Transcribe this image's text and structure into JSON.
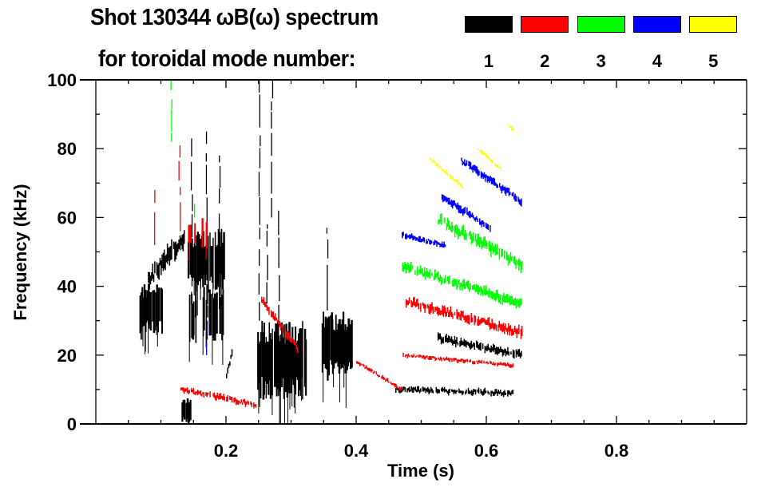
{
  "chart_data": {
    "type": "heatmap",
    "title": "Shot 130344 ωB(ω) spectrum",
    "subtitle": "for toroidal mode number:",
    "xlabel": "Time (s)",
    "ylabel": "Frequency (kHz)",
    "xlim": [
      0,
      1.0
    ],
    "ylim": [
      0,
      100
    ],
    "xticks": [
      0.2,
      0.4,
      0.6,
      0.8
    ],
    "xtick_labels": [
      "0.2",
      "0.4",
      "0.6",
      "0.8"
    ],
    "yticks": [
      0,
      20,
      40,
      60,
      80,
      100
    ],
    "ytick_labels": [
      "0",
      "20",
      "40",
      "60",
      "80",
      "100"
    ],
    "legend": [
      {
        "label": "1",
        "color": "#000000"
      },
      {
        "label": "2",
        "color": "#ff0000"
      },
      {
        "label": "3",
        "color": "#00ff00"
      },
      {
        "label": "4",
        "color": "#0000ff"
      },
      {
        "label": "5",
        "color": "#ffff00"
      }
    ],
    "legend_position": "top-right",
    "features": [
      {
        "mode": 1,
        "kind": "blob",
        "t": [
          0.067,
          0.102
        ],
        "f": [
          26,
          41
        ],
        "density": 0.9
      },
      {
        "mode": 1,
        "kind": "band",
        "t": [
          0.08,
          0.135
        ],
        "f": [
          42,
          54
        ],
        "thick": 5
      },
      {
        "mode": 1,
        "kind": "blob",
        "t": [
          0.141,
          0.196
        ],
        "f": [
          38,
          57
        ],
        "density": 0.95
      },
      {
        "mode": 1,
        "kind": "blob",
        "t": [
          0.14,
          0.2
        ],
        "f": [
          22,
          40
        ],
        "density": 0.4
      },
      {
        "mode": 1,
        "kind": "streak",
        "t": 0.147,
        "f": [
          26,
          83
        ]
      },
      {
        "mode": 1,
        "kind": "streak",
        "t": 0.17,
        "f": [
          24,
          85
        ]
      },
      {
        "mode": 1,
        "kind": "streak",
        "t": 0.19,
        "f": [
          40,
          78
        ]
      },
      {
        "mode": 1,
        "kind": "streak",
        "t": 0.075,
        "f": [
          21,
          30
        ]
      },
      {
        "mode": 1,
        "kind": "band",
        "t": [
          0.2,
          0.21
        ],
        "f": [
          14,
          22
        ],
        "thick": 2
      },
      {
        "mode": 1,
        "kind": "blob",
        "t": [
          0.248,
          0.322
        ],
        "f": [
          7,
          30
        ],
        "density": 0.85
      },
      {
        "mode": 1,
        "kind": "streak",
        "t": 0.251,
        "f": [
          30,
          100
        ]
      },
      {
        "mode": 1,
        "kind": "streak",
        "t": 0.27,
        "f": [
          60,
          100
        ]
      },
      {
        "mode": 1,
        "kind": "streak",
        "t": 0.28,
        "f": [
          28,
          62
        ]
      },
      {
        "mode": 1,
        "kind": "streak",
        "t": 0.262,
        "f": [
          35,
          58
        ]
      },
      {
        "mode": 1,
        "kind": "blob",
        "t": [
          0.347,
          0.393
        ],
        "f": [
          12.5,
          33
        ],
        "density": 0.85
      },
      {
        "mode": 1,
        "kind": "streak",
        "t": 0.355,
        "f": [
          33,
          57
        ]
      },
      {
        "mode": 1,
        "kind": "blob",
        "t": [
          0.13,
          0.145
        ],
        "f": [
          0,
          8
        ],
        "density": 0.6
      },
      {
        "mode": 1,
        "kind": "band",
        "t": [
          0.525,
          0.653
        ],
        "f": [
          25,
          20
        ],
        "thick": 2
      },
      {
        "mode": 1,
        "kind": "band",
        "t": [
          0.46,
          0.64
        ],
        "f": [
          10,
          9
        ],
        "thick": 1.5
      },
      {
        "mode": 2,
        "kind": "streak",
        "t": 0.128,
        "f": [
          56,
          81
        ]
      },
      {
        "mode": 2,
        "kind": "streak",
        "t": 0.09,
        "f": [
          52,
          68
        ]
      },
      {
        "mode": 2,
        "kind": "blob",
        "t": [
          0.14,
          0.17
        ],
        "f": [
          50,
          60
        ],
        "density": 0.25
      },
      {
        "mode": 2,
        "kind": "band",
        "t": [
          0.254,
          0.309
        ],
        "f": [
          36,
          22
        ],
        "thick": 2
      },
      {
        "mode": 2,
        "kind": "band",
        "t": [
          0.13,
          0.245
        ],
        "f": [
          10,
          5.6
        ],
        "thick": 1.5
      },
      {
        "mode": 2,
        "kind": "band",
        "t": [
          0.4,
          0.47
        ],
        "f": [
          18,
          10
        ],
        "thick": 1
      },
      {
        "mode": 2,
        "kind": "band",
        "t": [
          0.476,
          0.654
        ],
        "f": [
          35.7,
          26.5
        ],
        "thick": 2.5
      },
      {
        "mode": 2,
        "kind": "band",
        "t": [
          0.47,
          0.64
        ],
        "f": [
          20,
          17
        ],
        "thick": 1
      },
      {
        "mode": 3,
        "kind": "band",
        "t": [
          0.469,
          0.653
        ],
        "f": [
          46,
          35
        ],
        "thick": 2.5
      },
      {
        "mode": 3,
        "kind": "band",
        "t": [
          0.524,
          0.654
        ],
        "f": [
          59.4,
          46.2
        ],
        "thick": 3
      },
      {
        "mode": 3,
        "kind": "streak",
        "t": 0.115,
        "f": [
          82,
          100
        ]
      },
      {
        "mode": 3,
        "kind": "streak",
        "t": 0.152,
        "f": [
          60,
          64
        ]
      },
      {
        "mode": 4,
        "kind": "band",
        "t": [
          0.561,
          0.653
        ],
        "f": [
          76.6,
          64.7
        ],
        "thick": 2
      },
      {
        "mode": 4,
        "kind": "band",
        "t": [
          0.531,
          0.605
        ],
        "f": [
          66,
          57
        ],
        "thick": 2
      },
      {
        "mode": 4,
        "kind": "band",
        "t": [
          0.47,
          0.536
        ],
        "f": [
          55,
          52
        ],
        "thick": 1.5
      },
      {
        "mode": 4,
        "kind": "streak",
        "t": 0.17,
        "f": [
          20,
          30
        ]
      },
      {
        "mode": 5,
        "kind": "band",
        "t": [
          0.513,
          0.562
        ],
        "f": [
          77,
          69
        ],
        "thick": 1
      },
      {
        "mode": 5,
        "kind": "band",
        "t": [
          0.587,
          0.622
        ],
        "f": [
          80,
          74
        ],
        "thick": 1
      },
      {
        "mode": 5,
        "kind": "band",
        "t": [
          0.632,
          0.64
        ],
        "f": [
          87,
          85.5
        ],
        "thick": 1
      }
    ]
  }
}
